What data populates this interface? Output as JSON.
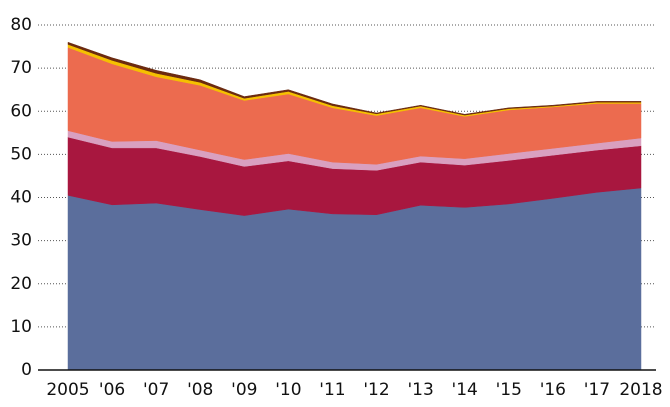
{
  "chart_data": {
    "type": "stacked_area",
    "categories": [
      "2005",
      "'06",
      "'07",
      "'08",
      "'09",
      "'10",
      "'11",
      "'12",
      "'13",
      "'14",
      "'15",
      "'16",
      "'17",
      "2018"
    ],
    "series": [
      {
        "color": "#5b6e9c",
        "values": [
          40.5,
          38.3,
          38.7,
          37.2,
          35.8,
          37.3,
          36.2,
          36.0,
          38.2,
          37.7,
          38.5,
          39.8,
          41.2,
          42.2
        ]
      },
      {
        "color": "#a8173f",
        "values": [
          13.5,
          13.2,
          12.8,
          12.3,
          11.4,
          11.2,
          10.5,
          10.3,
          10.0,
          9.8,
          10.1,
          10.0,
          9.8,
          9.8
        ]
      },
      {
        "color": "#d9a0c0",
        "values": [
          1.5,
          1.5,
          1.7,
          1.5,
          1.6,
          1.7,
          1.5,
          1.4,
          1.4,
          1.5,
          1.6,
          1.6,
          1.6,
          1.8
        ]
      },
      {
        "color": "#ec6b4f",
        "values": [
          19.3,
          18.0,
          14.8,
          15.0,
          13.7,
          13.8,
          12.6,
          11.3,
          11.2,
          9.8,
          10.1,
          9.6,
          9.2,
          8.0
        ]
      },
      {
        "color": "#f5c000",
        "values": [
          0.7,
          0.8,
          0.8,
          0.7,
          0.5,
          0.6,
          0.5,
          0.4,
          0.4,
          0.3,
          0.3,
          0.2,
          0.3,
          0.3
        ]
      },
      {
        "color": "#6b2a10",
        "values": [
          0.5,
          0.6,
          0.7,
          0.6,
          0.4,
          0.4,
          0.4,
          0.2,
          0.2,
          0.2,
          0.2,
          0.2,
          0.2,
          0.2
        ]
      }
    ],
    "ylim": [
      0,
      80
    ],
    "yticks": [
      0,
      10,
      20,
      30,
      40,
      50,
      60,
      70,
      80
    ],
    "grid": true
  }
}
